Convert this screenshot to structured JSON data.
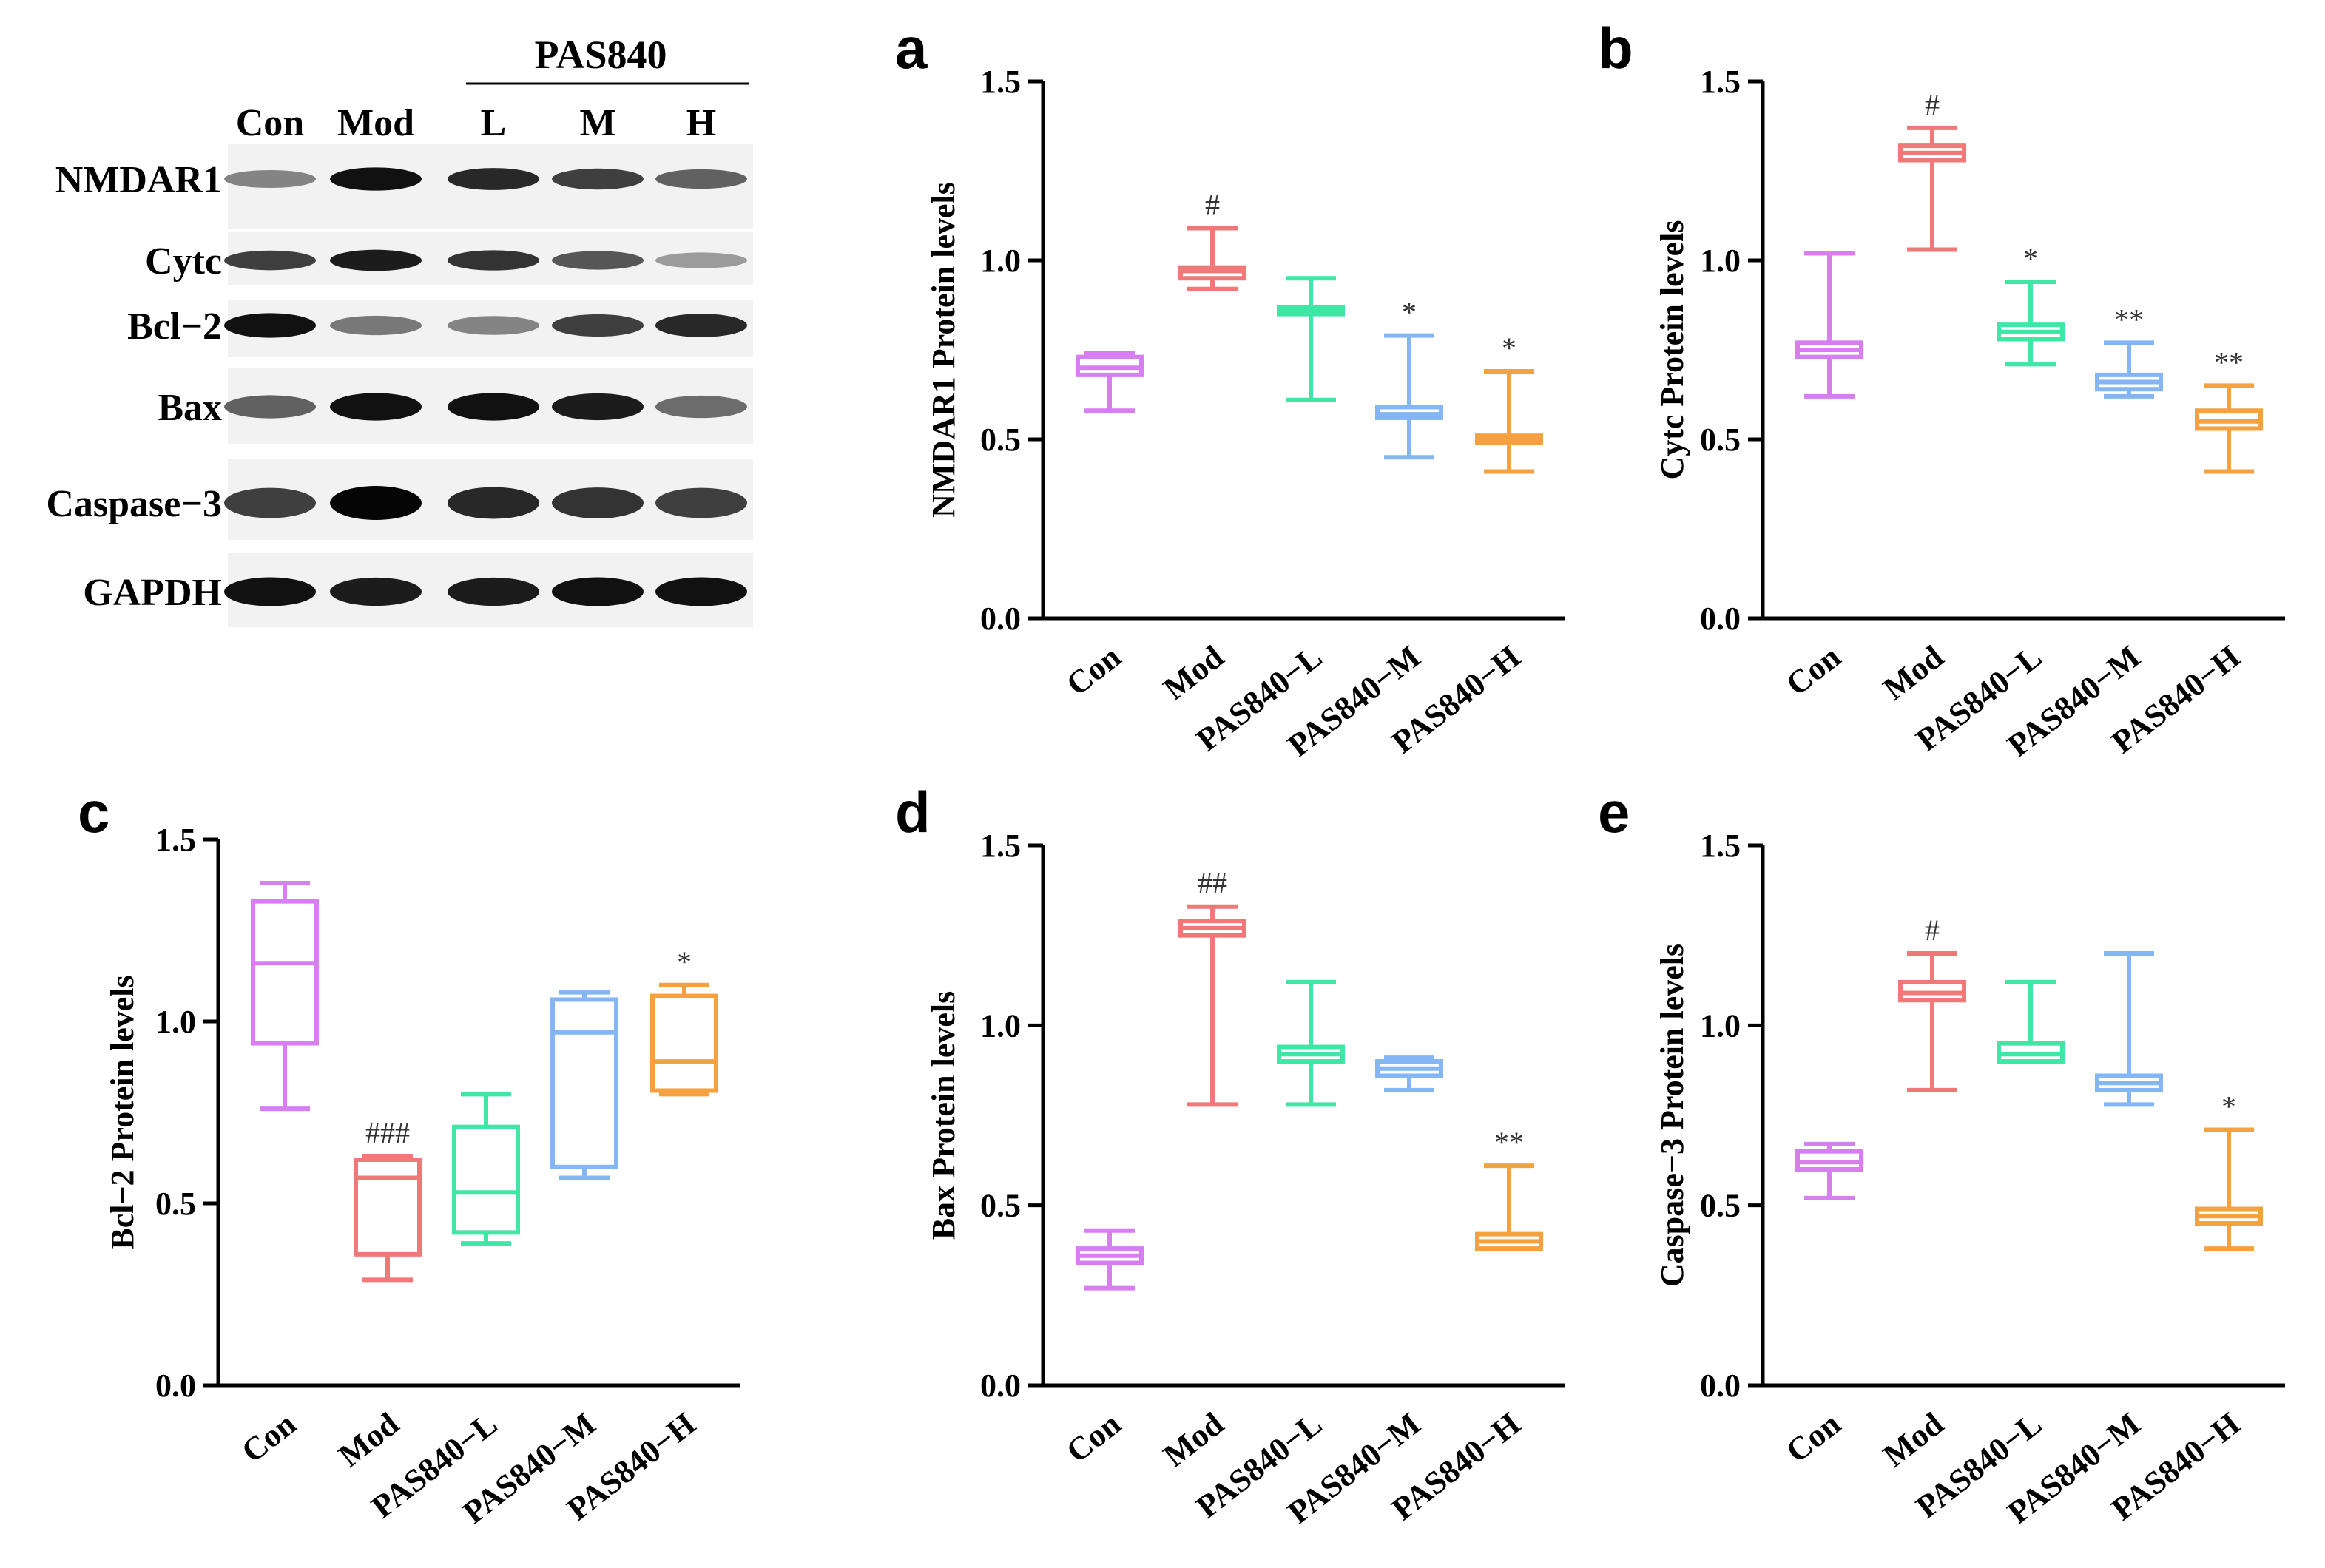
{
  "western_blot": {
    "group_header": "PAS840",
    "lanes": [
      "Con",
      "Mod",
      "L",
      "M",
      "H"
    ],
    "proteins": [
      {
        "name": "NMDAR1",
        "band_intensity": [
          0.45,
          0.95,
          0.85,
          0.75,
          0.6
        ]
      },
      {
        "name": "Cytc",
        "band_intensity": [
          0.75,
          0.9,
          0.8,
          0.65,
          0.35
        ]
      },
      {
        "name": "Bcl−2",
        "band_intensity": [
          0.95,
          0.5,
          0.45,
          0.75,
          0.85
        ]
      },
      {
        "name": "Bax",
        "band_intensity": [
          0.6,
          0.95,
          0.95,
          0.9,
          0.55
        ]
      },
      {
        "name": "Caspase−3",
        "band_intensity": [
          0.75,
          1.0,
          0.85,
          0.8,
          0.75
        ]
      },
      {
        "name": "GAPDH",
        "band_intensity": [
          0.95,
          0.9,
          0.9,
          0.95,
          0.95
        ]
      }
    ]
  },
  "chart_data": [
    {
      "type": "box",
      "panel": "a",
      "ylabel": "NMDAR1 Protein levels",
      "ylim": [
        0,
        1.5
      ],
      "yticks": [
        "0.0",
        "0.5",
        "1.0",
        "1.5"
      ],
      "categories": [
        "Con",
        "Mod",
        "PAS840−L",
        "PAS840−M",
        "PAS840−H"
      ],
      "colors": [
        "#d77ef0",
        "#f07878",
        "#3fe6a6",
        "#84b5f5",
        "#f5a142"
      ],
      "boxes": [
        {
          "min": 0.58,
          "q1": 0.68,
          "median": 0.7,
          "q3": 0.73,
          "max": 0.74,
          "sig": ""
        },
        {
          "min": 0.92,
          "q1": 0.95,
          "median": 0.97,
          "q3": 0.98,
          "max": 1.09,
          "sig": "#"
        },
        {
          "min": 0.61,
          "q1": 0.85,
          "median": 0.86,
          "q3": 0.87,
          "max": 0.95,
          "sig": ""
        },
        {
          "min": 0.45,
          "q1": 0.56,
          "median": 0.57,
          "q3": 0.59,
          "max": 0.79,
          "sig": "*"
        },
        {
          "min": 0.41,
          "q1": 0.49,
          "median": 0.5,
          "q3": 0.51,
          "max": 0.69,
          "sig": "*"
        }
      ]
    },
    {
      "type": "box",
      "panel": "b",
      "ylabel": "Cytc Protein levels",
      "ylim": [
        0,
        1.5
      ],
      "yticks": [
        "0.0",
        "0.5",
        "1.0",
        "1.5"
      ],
      "categories": [
        "Con",
        "Mod",
        "PAS840−L",
        "PAS840−M",
        "PAS840−H"
      ],
      "colors": [
        "#d77ef0",
        "#f07878",
        "#3fe6a6",
        "#84b5f5",
        "#f5a142"
      ],
      "boxes": [
        {
          "min": 0.62,
          "q1": 0.73,
          "median": 0.75,
          "q3": 0.77,
          "max": 1.02,
          "sig": ""
        },
        {
          "min": 1.03,
          "q1": 1.28,
          "median": 1.3,
          "q3": 1.32,
          "max": 1.37,
          "sig": "#"
        },
        {
          "min": 0.71,
          "q1": 0.78,
          "median": 0.8,
          "q3": 0.82,
          "max": 0.94,
          "sig": "*"
        },
        {
          "min": 0.62,
          "q1": 0.64,
          "median": 0.66,
          "q3": 0.68,
          "max": 0.77,
          "sig": "**"
        },
        {
          "min": 0.41,
          "q1": 0.53,
          "median": 0.55,
          "q3": 0.58,
          "max": 0.65,
          "sig": "**"
        }
      ]
    },
    {
      "type": "box",
      "panel": "c",
      "ylabel": "Bcl−2 Protein levels",
      "ylim": [
        0,
        1.5
      ],
      "yticks": [
        "0.0",
        "0.5",
        "1.0",
        "1.5"
      ],
      "categories": [
        "Con",
        "Mod",
        "PAS840−L",
        "PAS840−M",
        "PAS840−H"
      ],
      "colors": [
        "#d77ef0",
        "#f07878",
        "#3fe6a6",
        "#84b5f5",
        "#f5a142"
      ],
      "boxes": [
        {
          "min": 0.76,
          "q1": 0.94,
          "median": 1.16,
          "q3": 1.33,
          "max": 1.38,
          "sig": ""
        },
        {
          "min": 0.29,
          "q1": 0.36,
          "median": 0.57,
          "q3": 0.62,
          "max": 0.63,
          "sig": "###"
        },
        {
          "min": 0.39,
          "q1": 0.42,
          "median": 0.53,
          "q3": 0.71,
          "max": 0.8,
          "sig": ""
        },
        {
          "min": 0.57,
          "q1": 0.6,
          "median": 0.97,
          "q3": 1.06,
          "max": 1.08,
          "sig": ""
        },
        {
          "min": 0.8,
          "q1": 0.81,
          "median": 0.89,
          "q3": 1.07,
          "max": 1.1,
          "sig": "*"
        }
      ]
    },
    {
      "type": "box",
      "panel": "d",
      "ylabel": "Bax Protein levels",
      "ylim": [
        0,
        1.5
      ],
      "yticks": [
        "0.0",
        "0.5",
        "1.0",
        "1.5"
      ],
      "categories": [
        "Con",
        "Mod",
        "PAS840−L",
        "PAS840−M",
        "PAS840−H"
      ],
      "colors": [
        "#d77ef0",
        "#f07878",
        "#3fe6a6",
        "#84b5f5",
        "#f5a142"
      ],
      "boxes": [
        {
          "min": 0.27,
          "q1": 0.34,
          "median": 0.36,
          "q3": 0.38,
          "max": 0.43,
          "sig": ""
        },
        {
          "min": 0.78,
          "q1": 1.25,
          "median": 1.27,
          "q3": 1.29,
          "max": 1.33,
          "sig": "##"
        },
        {
          "min": 0.78,
          "q1": 0.9,
          "median": 0.92,
          "q3": 0.94,
          "max": 1.12,
          "sig": ""
        },
        {
          "min": 0.82,
          "q1": 0.86,
          "median": 0.88,
          "q3": 0.9,
          "max": 0.91,
          "sig": ""
        },
        {
          "min": 0.38,
          "q1": 0.38,
          "median": 0.4,
          "q3": 0.42,
          "max": 0.61,
          "sig": "**"
        }
      ]
    },
    {
      "type": "box",
      "panel": "e",
      "ylabel": "Caspase−3 Protein levels",
      "ylim": [
        0,
        1.5
      ],
      "yticks": [
        "0.0",
        "0.5",
        "1.0",
        "1.5"
      ],
      "categories": [
        "Con",
        "Mod",
        "PAS840−L",
        "PAS840−M",
        "PAS840−H"
      ],
      "colors": [
        "#d77ef0",
        "#f07878",
        "#3fe6a6",
        "#84b5f5",
        "#f5a142"
      ],
      "boxes": [
        {
          "min": 0.52,
          "q1": 0.6,
          "median": 0.62,
          "q3": 0.65,
          "max": 0.67,
          "sig": ""
        },
        {
          "min": 0.82,
          "q1": 1.07,
          "median": 1.09,
          "q3": 1.12,
          "max": 1.2,
          "sig": "#"
        },
        {
          "min": 0.9,
          "q1": 0.9,
          "median": 0.92,
          "q3": 0.95,
          "max": 1.12,
          "sig": ""
        },
        {
          "min": 0.78,
          "q1": 0.82,
          "median": 0.84,
          "q3": 0.86,
          "max": 1.2,
          "sig": ""
        },
        {
          "min": 0.38,
          "q1": 0.45,
          "median": 0.47,
          "q3": 0.49,
          "max": 0.71,
          "sig": "*"
        }
      ]
    }
  ]
}
